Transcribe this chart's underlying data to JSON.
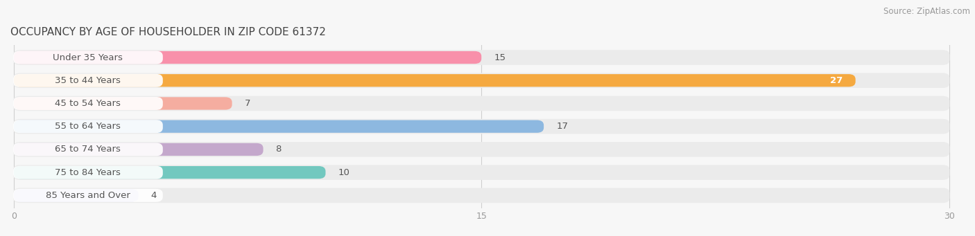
{
  "title": "OCCUPANCY BY AGE OF HOUSEHOLDER IN ZIP CODE 61372",
  "source": "Source: ZipAtlas.com",
  "categories": [
    "Under 35 Years",
    "35 to 44 Years",
    "45 to 54 Years",
    "55 to 64 Years",
    "65 to 74 Years",
    "75 to 84 Years",
    "85 Years and Over"
  ],
  "values": [
    15,
    27,
    7,
    17,
    8,
    10,
    4
  ],
  "bar_colors": [
    "#F890AA",
    "#F5A940",
    "#F5ADA0",
    "#8DB8E0",
    "#C4A8CC",
    "#72C8BF",
    "#C0BFEB"
  ],
  "xlim": [
    0,
    30
  ],
  "xticks": [
    0,
    15,
    30
  ],
  "background_color": "#f7f7f7",
  "bar_bg_color": "#ebebeb",
  "row_bg_color": "#f0f0f0",
  "title_fontsize": 11,
  "source_fontsize": 8.5,
  "label_fontsize": 9.5,
  "value_fontsize": 9.5,
  "label_color": "#555555",
  "value_color_dark": "#555555",
  "value_color_white": "#ffffff"
}
